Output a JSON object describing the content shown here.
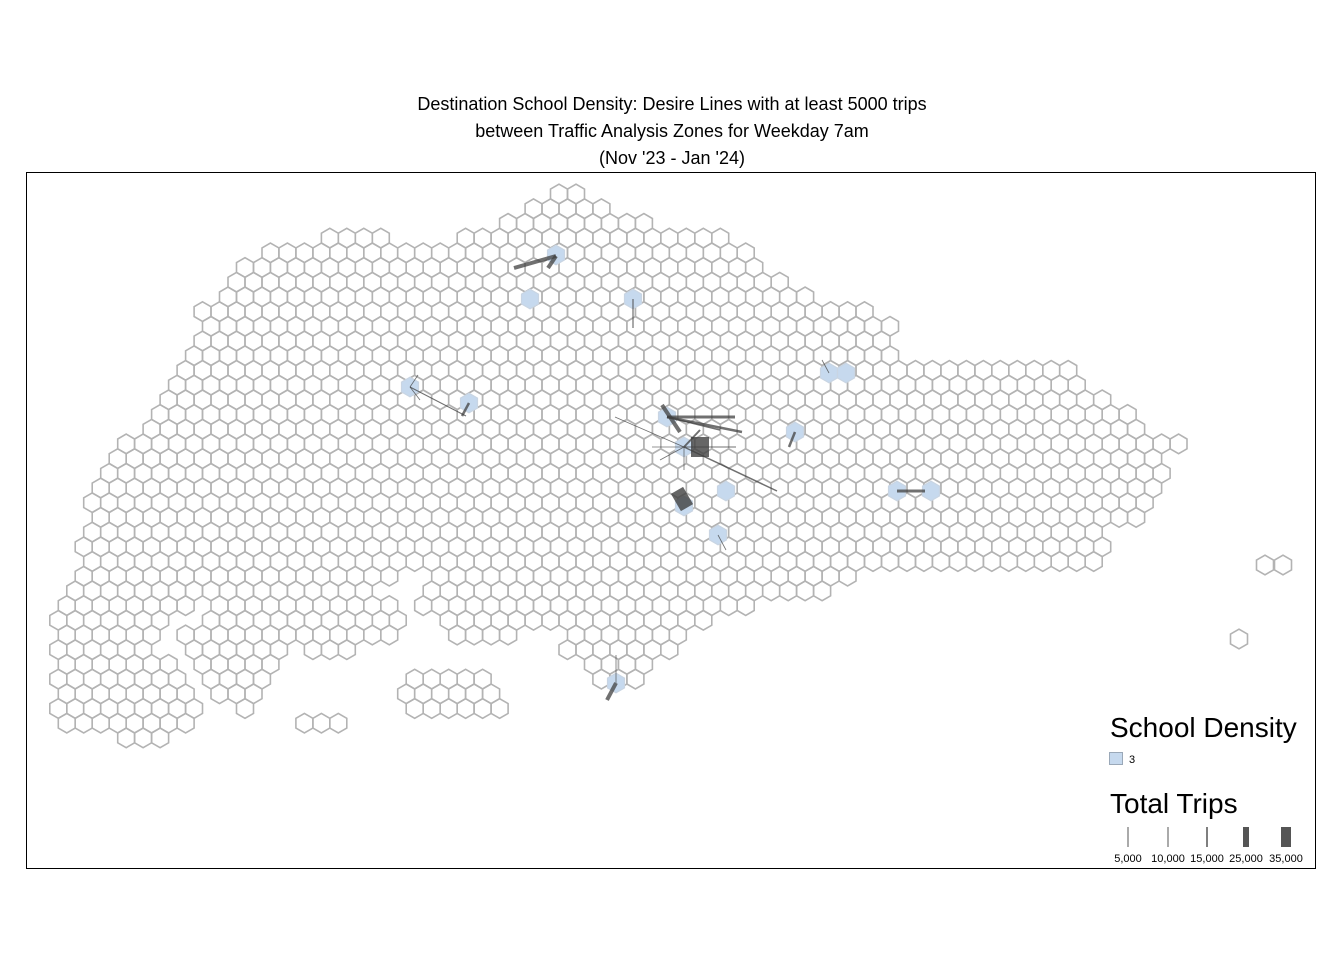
{
  "title": {
    "line1": "Destination School Density: Desire Lines with at least 5000 trips",
    "line2": "between Traffic Analysis Zones for Weekday 7am",
    "line3": "(Nov '23 - Jan '24)"
  },
  "legend": {
    "density": {
      "title": "School Density",
      "value": "3",
      "color": "#c6d9ee"
    },
    "trips": {
      "title": "Total Trips",
      "labels": [
        "5,000",
        "10,000",
        "15,000",
        "25,000",
        "35,000"
      ],
      "color": "#555555"
    }
  },
  "colors": {
    "hex_outline": "#b3b3b3",
    "school_zone_fill": "#c6d9ee",
    "desire_line": "#404040",
    "frame": "#000000"
  }
}
